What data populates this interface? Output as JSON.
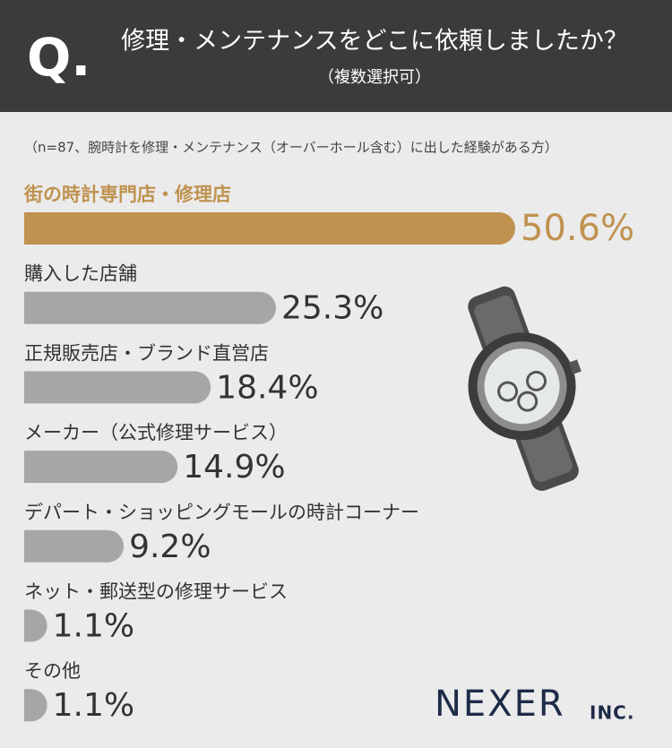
{
  "chart_data": {
    "type": "hbar",
    "q_label": "Q.",
    "title": "修理・メンテナンスをどこに依頼しましたか？",
    "subtitle": "（複数選択可）",
    "note": "（n=87、腕時計を修理・メンテナンス（オーバーホール含む）に出した経験がある方）",
    "categories": [
      "街の時計専門店・修理店",
      "購入した店舗",
      "正規販売店・ブランド直営店",
      "メーカー（公式修理サービス）",
      "デパート・ショッピングモールの時計コーナー",
      "ネット・郵送型の修理サービス",
      "その他"
    ],
    "values": [
      50.6,
      25.3,
      18.4,
      14.9,
      9.2,
      1.1,
      1.1
    ],
    "value_labels": [
      "50.6%",
      "25.3%",
      "18.4%",
      "14.9%",
      "9.2%",
      "1.1%",
      "1.1%"
    ],
    "colors": [
      "#c0924f",
      "#a6a6a8",
      "#a6a6a8",
      "#a6a6a8",
      "#a6a6a8",
      "#a6a6a8",
      "#a6a6a8"
    ]
  },
  "logo": {
    "name": "NEXER",
    "suffix": "INC."
  }
}
